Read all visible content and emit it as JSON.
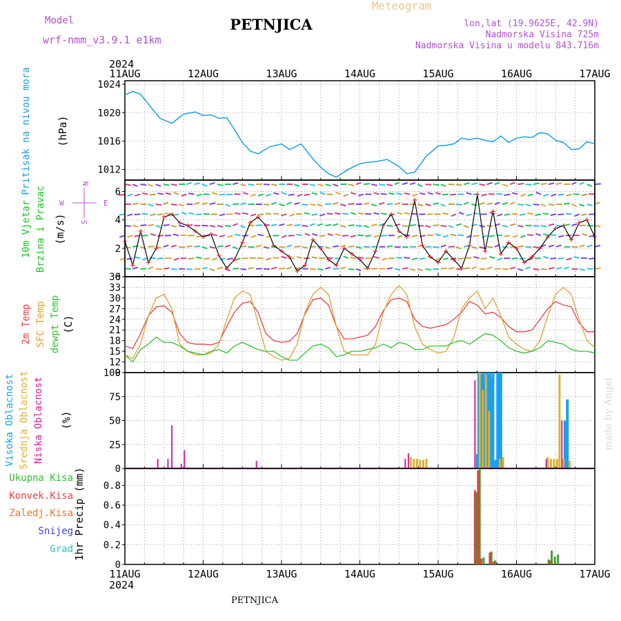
{
  "header": {
    "model_label": "Model",
    "model_name": "wrf-nmm_v3.9.1  e1km",
    "title": "PETNJICA",
    "meteogram_label": "Meteogram",
    "coords": "lon,lat (19.9625E, 42.9N)",
    "altitude": "Nadmorska Visina 725m",
    "model_altitude": "Nadmorska Visina u modelu 843.716m",
    "year_top": "2024",
    "year_bottom": "2024",
    "footer_title": "PETNJICA",
    "credit": "made by Angel"
  },
  "compass": {
    "n": "N",
    "s": "S",
    "e": "E",
    "w": "W"
  },
  "panel_labels": {
    "pressure": [
      "Pritisak na nivou mora",
      "(hPa)"
    ],
    "wind": [
      "10m Vjetar",
      "Brzina i Pravac",
      "(m/s)"
    ],
    "temp": [
      "2m Temp",
      "SFC Temp",
      "dewpt Temp",
      "(C)"
    ],
    "cloud": [
      "Visoka Oblacnost",
      "Srednja Oblacnost",
      "Niska Oblacnost",
      "(%)"
    ],
    "precip_axis": "1hr Precip (mm)",
    "precip_legend": [
      "Ukupna Kisa",
      "Konvek.Kisa",
      "Zaledj.Kisa",
      "Snijeg",
      "Grad"
    ]
  },
  "colors": {
    "pressure": "#1a9fe0",
    "wind_speed": "#000000",
    "wind_marker": "#e83030",
    "temp2m": "#e84040",
    "sfc": "#e0a030",
    "dewpt": "#30c030",
    "cloud_high": "#1aa0f0",
    "cloud_mid": "#e0b030",
    "cloud_low": "#d020a0",
    "rain_total": "#40a030",
    "rain_conv": "#e04040",
    "rain_frz": "#f07030",
    "snow": "#4040d0",
    "hail": "#30c0c0",
    "label_pressure": "#1a9fe0",
    "label_wind_a": "#20c020",
    "label_wind_b": "#20c020",
    "label_purple": "#b050d0"
  },
  "chart_data": [
    {
      "type": "line",
      "panel": "pressure",
      "ylabel": "(hPa)",
      "ylim": [
        1010.5,
        1024.5
      ],
      "yticks": [
        1012,
        1016,
        1020,
        1024
      ],
      "x_categories": [
        "11AUG",
        "12AUG",
        "13AUG",
        "14AUG",
        "15AUG",
        "16AUG",
        "17AUG"
      ],
      "x_days": [
        0,
        0.1,
        0.2,
        0.3,
        0.45,
        0.6,
        0.75,
        0.9,
        1.0,
        1.1,
        1.2,
        1.3,
        1.4,
        1.5,
        1.6,
        1.7,
        1.85,
        2.0,
        2.1,
        2.25,
        2.4,
        2.5,
        2.6,
        2.7,
        2.85,
        3.0,
        3.1,
        3.2,
        3.35,
        3.5,
        3.6,
        3.7,
        3.85,
        4.0,
        4.1,
        4.2,
        4.3,
        4.4,
        4.5,
        4.6,
        4.7,
        4.8,
        4.9,
        5.0,
        5.1,
        5.2,
        5.3,
        5.4,
        5.5,
        5.6,
        5.7,
        5.8,
        5.9,
        6.0
      ],
      "series": [
        {
          "values": [
            1022.5,
            1023,
            1022.6,
            1021.2,
            1019.2,
            1018.5,
            1019.8,
            1020.1,
            1019.6,
            1019.7,
            1019.2,
            1019.3,
            1017.6,
            1015.8,
            1014.6,
            1014.2,
            1015.2,
            1015.6,
            1014.8,
            1015.6,
            1013.5,
            1012.3,
            1011.4,
            1010.9,
            1012.0,
            1012.8,
            1013.0,
            1013.1,
            1013.4,
            1012.4,
            1011.4,
            1011.6,
            1013.9,
            1015.3,
            1015.4,
            1015.6,
            1016.4,
            1016.2,
            1016.4,
            1016.1,
            1015.9,
            1016.7,
            1015.8,
            1016.4,
            1016.6,
            1016.5,
            1017.2,
            1017.0,
            1016.1,
            1015.8,
            1014.8,
            1014.9,
            1015.9,
            1015.6
          ]
        }
      ]
    },
    {
      "type": "line",
      "panel": "wind",
      "ylabel": "(m/s)",
      "ylim": [
        0,
        6.8
      ],
      "yticks": [
        0,
        2,
        4,
        6
      ],
      "x_days": [
        0,
        0.1,
        0.2,
        0.3,
        0.4,
        0.5,
        0.6,
        0.7,
        0.8,
        0.9,
        1.0,
        1.1,
        1.2,
        1.3,
        1.4,
        1.5,
        1.6,
        1.7,
        1.8,
        1.9,
        2.0,
        2.1,
        2.2,
        2.3,
        2.4,
        2.5,
        2.6,
        2.7,
        2.8,
        2.9,
        3.0,
        3.1,
        3.2,
        3.3,
        3.4,
        3.5,
        3.6,
        3.7,
        3.8,
        3.9,
        4.0,
        4.1,
        4.2,
        4.3,
        4.4,
        4.5,
        4.6,
        4.7,
        4.8,
        4.9,
        5.0,
        5.1,
        5.2,
        5.3,
        5.4,
        5.5,
        5.6,
        5.7,
        5.8,
        5.9,
        6.0
      ],
      "series": [
        {
          "name": "speed",
          "values": [
            2.5,
            0.8,
            3.2,
            1.0,
            2.0,
            4.2,
            4.4,
            3.8,
            3.6,
            3.2,
            2.8,
            3.0,
            1.5,
            0.6,
            1.2,
            2.4,
            3.8,
            4.2,
            3.6,
            2.2,
            1.8,
            1.4,
            0.4,
            0.8,
            2.6,
            2.0,
            1.2,
            0.8,
            2.0,
            1.6,
            1.2,
            0.6,
            1.8,
            3.6,
            4.4,
            3.2,
            2.8,
            5.4,
            2.2,
            1.4,
            1.0,
            1.8,
            1.2,
            0.6,
            2.2,
            5.8,
            1.8,
            4.6,
            1.6,
            2.4,
            2.0,
            1.0,
            1.4,
            2.0,
            2.8,
            3.4,
            3.6,
            2.6,
            3.8,
            4.0,
            2.8
          ]
        }
      ]
    },
    {
      "type": "line",
      "panel": "temperature",
      "ylabel": "(C)",
      "ylim": [
        9,
        36
      ],
      "yticks": [
        9,
        12,
        15,
        18,
        21,
        24,
        27,
        30,
        33,
        36
      ],
      "x_days": [
        0,
        0.1,
        0.2,
        0.3,
        0.4,
        0.5,
        0.6,
        0.7,
        0.8,
        0.9,
        1.0,
        1.1,
        1.2,
        1.3,
        1.4,
        1.5,
        1.6,
        1.7,
        1.8,
        1.9,
        2.0,
        2.1,
        2.2,
        2.3,
        2.4,
        2.5,
        2.6,
        2.7,
        2.8,
        2.9,
        3.0,
        3.1,
        3.2,
        3.3,
        3.4,
        3.5,
        3.6,
        3.7,
        3.8,
        3.9,
        4.0,
        4.1,
        4.2,
        4.3,
        4.4,
        4.5,
        4.6,
        4.7,
        4.8,
        4.9,
        5.0,
        5.1,
        5.2,
        5.3,
        5.4,
        5.5,
        5.6,
        5.7,
        5.8,
        5.9,
        6.0
      ],
      "series": [
        {
          "name": "2m Temp",
          "values": [
            16.5,
            15.8,
            20,
            25,
            27.5,
            27.8,
            26,
            20,
            17.5,
            17,
            17,
            16.8,
            17.5,
            22,
            26,
            28.5,
            29,
            26,
            20,
            18,
            17.5,
            17.8,
            20,
            25.5,
            29.5,
            30,
            28,
            22,
            18.5,
            18.5,
            19,
            19.5,
            22,
            26.5,
            29.5,
            30,
            29,
            24,
            22,
            21.5,
            22,
            22.5,
            24,
            26,
            29,
            28,
            25.5,
            26,
            24.5,
            22,
            20.5,
            20.5,
            21,
            24,
            27,
            29,
            28,
            27.5,
            23,
            20.5,
            20.5
          ]
        },
        {
          "name": "SFC Temp",
          "values": [
            14,
            13,
            17,
            25,
            30,
            31,
            27,
            17,
            15,
            14,
            14,
            14.5,
            17,
            24,
            30,
            32,
            31,
            23,
            15,
            13.5,
            12.5,
            13,
            17,
            26,
            31,
            33,
            31,
            22,
            15,
            14,
            14,
            14,
            17,
            26,
            31,
            33.5,
            31,
            22,
            17,
            15.5,
            14.5,
            15,
            19,
            27,
            30,
            32,
            27,
            30,
            25,
            19,
            17,
            15.5,
            15,
            18,
            25,
            31,
            33,
            31,
            24,
            18,
            16
          ]
        },
        {
          "name": "dewpt Temp",
          "values": [
            14,
            12,
            15.5,
            17,
            19,
            17.5,
            17.5,
            16.5,
            15,
            14.5,
            14,
            15,
            15.5,
            14.5,
            16.5,
            17.5,
            16.5,
            15.5,
            15,
            15,
            13.5,
            12.5,
            12.5,
            14.5,
            16.5,
            17,
            16,
            13.5,
            14,
            15,
            15,
            15.5,
            16,
            17,
            16,
            17.5,
            17,
            15.5,
            15.5,
            16.5,
            16.5,
            16.5,
            17.5,
            18,
            17,
            18.5,
            20,
            19.5,
            18,
            16,
            15,
            14.5,
            15,
            16,
            18,
            17.5,
            17,
            15.5,
            15,
            15,
            14.5
          ]
        }
      ]
    },
    {
      "type": "bar",
      "panel": "cloud",
      "ylabel": "(%)",
      "ylim": [
        0,
        100
      ],
      "yticks": [
        0,
        25,
        50,
        75,
        100
      ],
      "series": [
        {
          "name": "Visoka Oblacnost",
          "x_days": [
            4.5,
            4.52,
            4.54,
            4.56,
            4.58,
            4.6,
            4.62,
            4.64,
            4.66,
            4.68,
            4.7,
            4.72,
            4.74,
            4.76,
            4.78,
            4.8,
            5.62,
            5.65
          ],
          "values": [
            15,
            100,
            100,
            98,
            100,
            98,
            100,
            98,
            100,
            95,
            100,
            8,
            9,
            100,
            100,
            100,
            50,
            72
          ]
        },
        {
          "name": "Srednja Oblacnost",
          "x_days": [
            3.65,
            3.69,
            3.73,
            3.77,
            3.81,
            3.85,
            4.53,
            4.57,
            4.61,
            4.65,
            4.79,
            4.83,
            5.4,
            5.44,
            5.48,
            5.52,
            5.55,
            5.6,
            5.68
          ],
          "values": [
            12,
            10,
            10,
            9,
            9,
            10,
            100,
            82,
            98,
            60,
            10,
            12,
            12,
            10,
            10,
            10,
            98,
            10,
            8
          ]
        },
        {
          "name": "Niska Oblacnost",
          "x_days": [
            0.42,
            0.55,
            0.6,
            0.72,
            0.76,
            1.68,
            3.58,
            3.62,
            4.47,
            5.38,
            5.58
          ],
          "values": [
            10,
            10,
            45,
            5,
            19,
            8,
            10,
            16,
            92,
            10,
            50
          ]
        }
      ]
    },
    {
      "type": "bar",
      "panel": "precip",
      "ylabel": "1hr Precip (mm)",
      "ylim": [
        0,
        0.97
      ],
      "yticks": [
        0,
        0.2,
        0.4,
        0.6,
        0.8
      ],
      "x_categories": [
        "11AUG",
        "12AUG",
        "13AUG",
        "14AUG",
        "15AUG",
        "16AUG",
        "17AUG"
      ],
      "series": [
        {
          "name": "Ukupna Kisa",
          "x_days": [
            4.49,
            4.53,
            4.58,
            4.68,
            4.73,
            5.41,
            5.45,
            5.49,
            5.53
          ],
          "values": [
            0.73,
            0.97,
            0.07,
            0.13,
            0.04,
            0.05,
            0.14,
            0.08,
            0.1
          ]
        },
        {
          "name": "Konvek.Kisa",
          "x_days": [
            4.47,
            4.51,
            4.55,
            4.66,
            4.71,
            5.43
          ],
          "values": [
            0.75,
            0.95,
            0.06,
            0.12,
            0.03,
            0.04
          ]
        }
      ]
    }
  ]
}
